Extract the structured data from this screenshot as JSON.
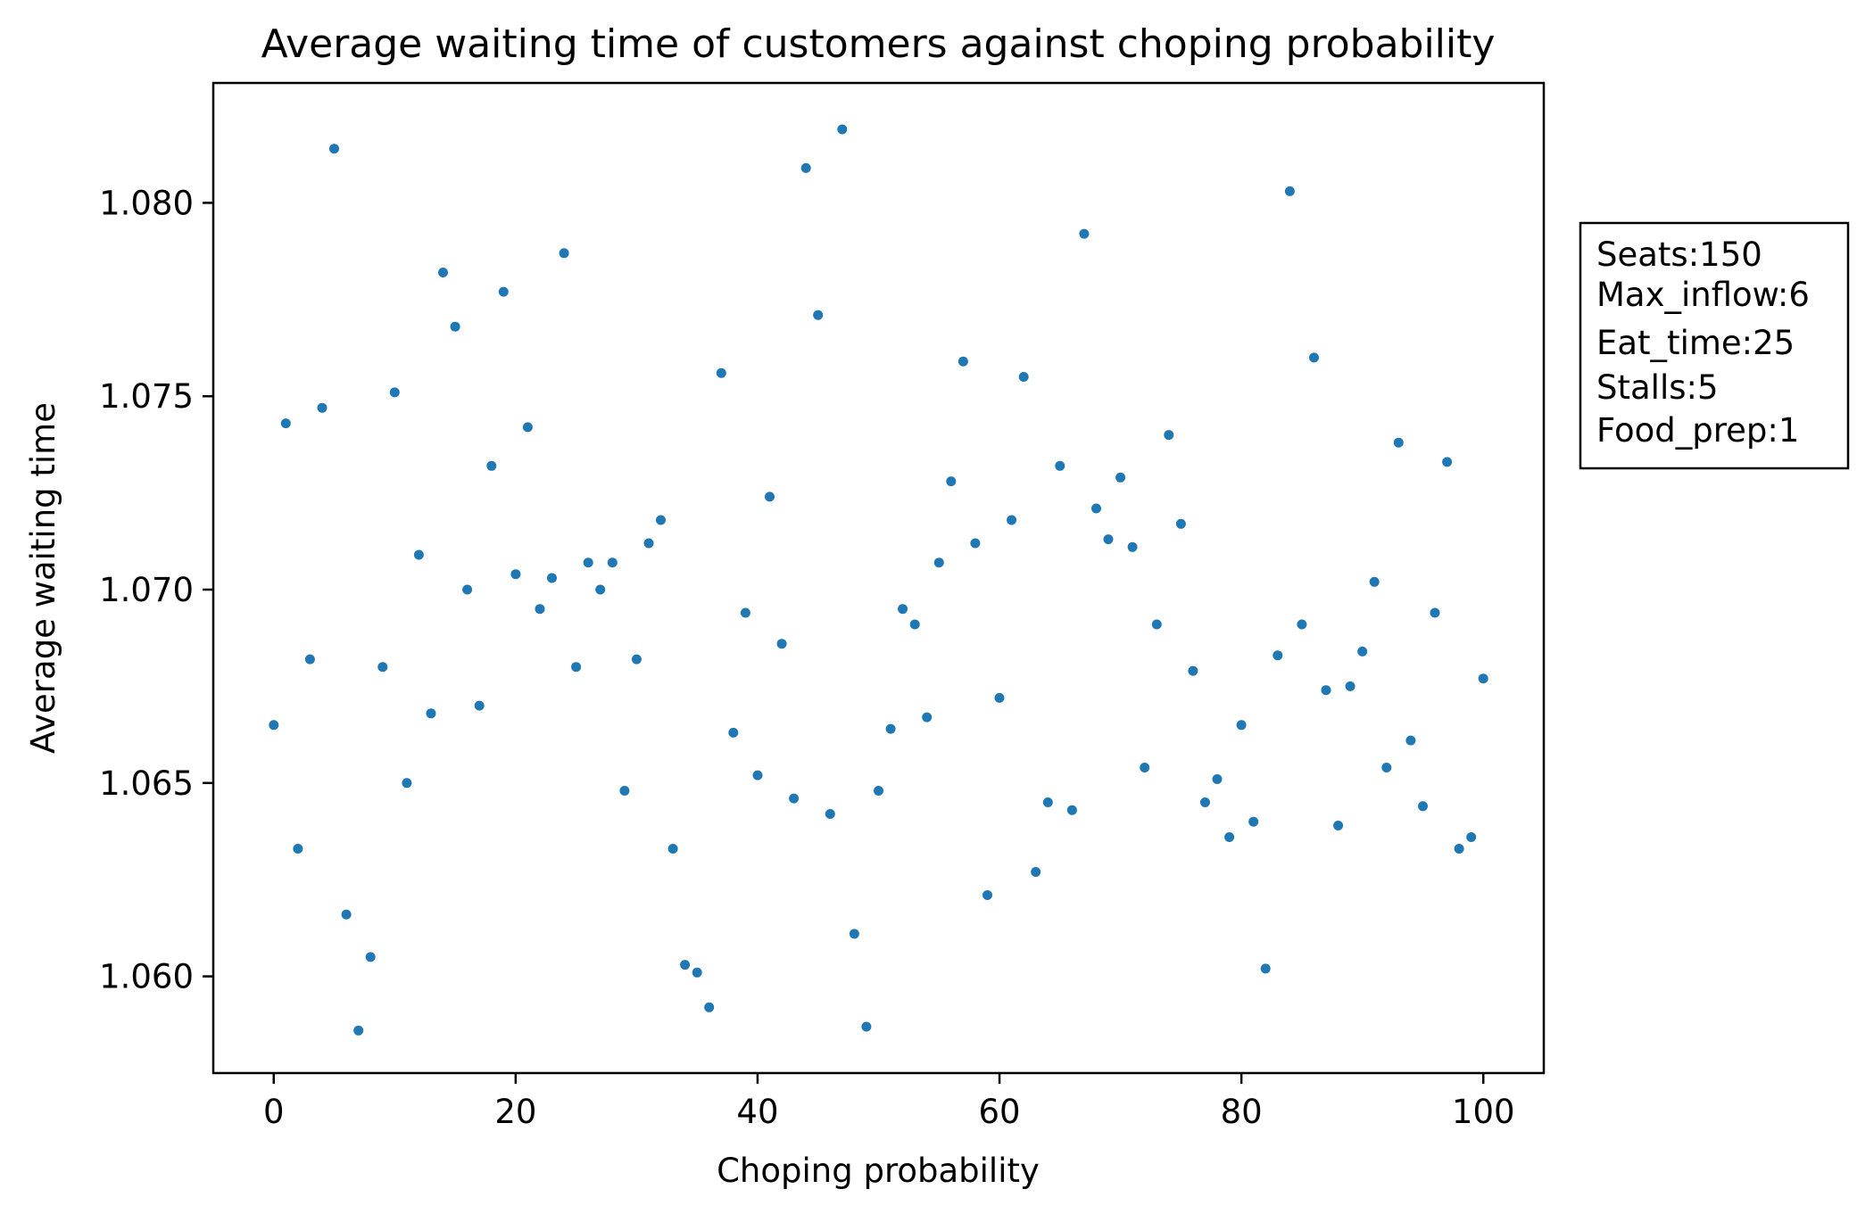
{
  "colors": {
    "marker": "#1f77b4",
    "axes": "#000000",
    "background": "#ffffff"
  },
  "chart_data": {
    "type": "scatter",
    "title": "Average waiting time of customers against choping probability",
    "xlabel": "Choping probability",
    "ylabel": "Average waiting time",
    "xlim": [
      -5,
      105
    ],
    "ylim": [
      1.0575,
      1.0831
    ],
    "grid": false,
    "legend": "none",
    "xticks": [
      0,
      20,
      40,
      60,
      80,
      100
    ],
    "xtick_labels": [
      "0",
      "20",
      "40",
      "60",
      "80",
      "100"
    ],
    "yticks": [
      1.06,
      1.065,
      1.07,
      1.075,
      1.08
    ],
    "ytick_labels": [
      "1.060",
      "1.065",
      "1.070",
      "1.075",
      "1.080"
    ],
    "annotation": {
      "lines": [
        "Seats:150",
        "Max_inflow:6",
        "Eat_time:25",
        "Stalls:5",
        "Food_prep:1"
      ],
      "placement": "right-outside"
    },
    "series": [
      {
        "x": [
          0,
          1,
          2,
          3,
          4,
          5,
          6,
          7,
          8,
          9,
          10,
          11,
          12,
          13,
          14,
          15,
          16,
          17,
          18,
          19,
          20,
          21,
          22,
          23,
          24,
          25,
          26,
          27,
          28,
          29,
          30,
          31,
          32,
          33,
          34,
          35,
          36,
          37,
          38,
          39,
          40,
          41,
          42,
          43,
          44,
          45,
          46,
          47,
          48,
          49,
          50,
          51,
          52,
          53,
          54,
          55,
          56,
          57,
          58,
          59,
          60,
          61,
          62,
          63,
          64,
          65,
          66,
          67,
          68,
          69,
          70,
          71,
          72,
          73,
          74,
          75,
          76,
          77,
          78,
          79,
          80,
          81,
          82,
          83,
          84,
          85,
          86,
          87,
          88,
          89,
          90,
          91,
          92,
          93,
          94,
          95,
          96,
          97,
          98,
          99,
          100
        ],
        "y": [
          1.0665,
          1.0743,
          1.0633,
          1.0682,
          1.0747,
          1.0814,
          1.0616,
          1.0586,
          1.0605,
          1.068,
          1.0751,
          1.065,
          1.0709,
          1.0668,
          1.0782,
          1.0768,
          1.07,
          1.067,
          1.0732,
          1.0777,
          1.0704,
          1.0742,
          1.0695,
          1.0703,
          1.0787,
          1.068,
          1.0707,
          1.07,
          1.0707,
          1.0648,
          1.0682,
          1.0712,
          1.0718,
          1.0633,
          1.0603,
          1.0601,
          1.0592,
          1.0756,
          1.0663,
          1.0694,
          1.0652,
          1.0724,
          1.0686,
          1.0646,
          1.0809,
          1.0771,
          1.0642,
          1.0819,
          1.0611,
          1.0587,
          1.0648,
          1.0664,
          1.0695,
          1.0691,
          1.0667,
          1.0707,
          1.0728,
          1.0759,
          1.0712,
          1.0621,
          1.0672,
          1.0718,
          1.0755,
          1.0627,
          1.0645,
          1.0732,
          1.0643,
          1.0792,
          1.0721,
          1.0713,
          1.0729,
          1.0711,
          1.0654,
          1.0691,
          1.074,
          1.0717,
          1.0679,
          1.0645,
          1.0651,
          1.0636,
          1.0665,
          1.064,
          1.0602,
          1.0683,
          1.0803,
          1.0691,
          1.076,
          1.0674,
          1.0639,
          1.0675,
          1.0684,
          1.0702,
          1.0654,
          1.0738,
          1.0661,
          1.0644,
          1.0694,
          1.0733,
          1.0633,
          1.0636,
          1.0677
        ]
      }
    ]
  }
}
